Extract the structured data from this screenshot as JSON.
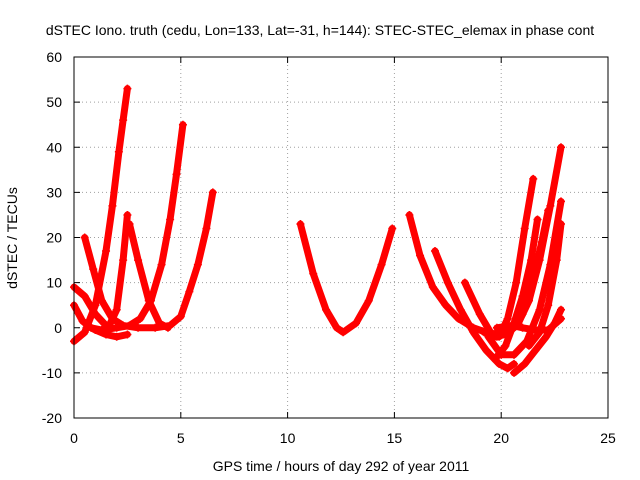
{
  "chart_data": {
    "type": "scatter",
    "title": "dSTEC Iono. truth (cedu, Lon=133, Lat=-31, h=144): STEC-STEC_elemax in phase cont",
    "xlabel": "GPS time / hours of day 292 of year 2011",
    "ylabel": "dSTEC  / TECUs",
    "xlim": [
      0,
      25
    ],
    "ylim": [
      -20,
      60
    ],
    "xticks": [
      0,
      5,
      10,
      15,
      20,
      25
    ],
    "yticks": [
      -20,
      -10,
      0,
      10,
      20,
      30,
      40,
      50,
      60
    ],
    "grid": true,
    "marker": "plus",
    "color": "#ff0000",
    "series": [
      {
        "x": [
          0.0,
          0.5,
          1.0,
          1.5,
          1.8,
          2.1,
          2.3,
          2.5
        ],
        "y": [
          -3.0,
          -1.0,
          5.0,
          17.0,
          27.0,
          39.0,
          46.0,
          53.0
        ]
      },
      {
        "x": [
          0.0,
          0.4,
          0.8,
          1.3,
          2.0,
          2.6,
          3.1,
          3.6,
          4.1,
          4.5,
          4.8,
          5.1
        ],
        "y": [
          5.0,
          1.5,
          0.0,
          -0.5,
          0.0,
          0.5,
          2.0,
          6.0,
          14.0,
          24.0,
          34.0,
          45.0
        ]
      },
      {
        "x": [
          0.0,
          0.5,
          1.0,
          1.6,
          2.0,
          2.3,
          2.5
        ],
        "y": [
          9.0,
          7.0,
          3.0,
          0.0,
          4.0,
          15.0,
          25.0
        ]
      },
      {
        "x": [
          0.5,
          0.9,
          1.3,
          1.8,
          2.3,
          3.0,
          3.8,
          4.5,
          5.0,
          5.4,
          5.8,
          6.2,
          6.5
        ],
        "y": [
          20.0,
          13.0,
          6.0,
          2.0,
          0.5,
          0.0,
          0.0,
          0.5,
          2.5,
          8.0,
          14.0,
          22.0,
          30.0
        ]
      },
      {
        "x": [
          0.6,
          1.0,
          1.5,
          2.0,
          2.5
        ],
        "y": [
          0.5,
          -0.5,
          -1.5,
          -2.0,
          -1.5
        ]
      },
      {
        "x": [
          2.6,
          3.0,
          3.5,
          4.0,
          4.4
        ],
        "y": [
          23.0,
          15.0,
          6.0,
          1.0,
          0.0
        ]
      },
      {
        "x": [
          10.6,
          11.2,
          11.8,
          12.3,
          12.6,
          13.2,
          13.8,
          14.4,
          14.9
        ],
        "y": [
          23.0,
          12.0,
          4.0,
          0.0,
          -1.0,
          1.0,
          6.0,
          14.0,
          22.0
        ]
      },
      {
        "x": [
          15.7,
          16.2,
          16.8,
          17.4,
          18.0,
          18.7,
          19.3,
          19.8
        ],
        "y": [
          25.0,
          16.0,
          9.0,
          5.0,
          2.0,
          0.0,
          -1.0,
          -2.0
        ]
      },
      {
        "x": [
          16.9,
          17.5,
          18.1,
          18.7,
          19.3,
          19.9,
          20.3,
          20.6
        ],
        "y": [
          17.0,
          10.0,
          4.0,
          -1.0,
          -5.0,
          -8.0,
          -9.0,
          -8.0
        ]
      },
      {
        "x": [
          18.3,
          19.0,
          19.5,
          19.9,
          20.3,
          20.7,
          21.1,
          21.5
        ],
        "y": [
          10.0,
          3.0,
          -1.0,
          -2.0,
          2.0,
          10.0,
          22.0,
          33.0
        ]
      },
      {
        "x": [
          19.2,
          19.7,
          20.2,
          20.6,
          21.0,
          21.5,
          21.9,
          22.2
        ],
        "y": [
          -1.0,
          -2.0,
          -1.5,
          0.0,
          3.0,
          11.0,
          19.0,
          26.0
        ]
      },
      {
        "x": [
          19.8,
          20.3,
          20.8,
          21.3,
          21.8,
          22.3,
          22.8
        ],
        "y": [
          -1.0,
          -0.5,
          1.0,
          6.0,
          15.0,
          27.0,
          40.0
        ]
      },
      {
        "x": [
          19.7,
          20.2,
          20.6,
          21.0,
          21.4,
          21.7
        ],
        "y": [
          -7.0,
          -4.0,
          1.0,
          7.0,
          15.0,
          24.0
        ]
      },
      {
        "x": [
          19.4,
          20.0,
          20.6,
          21.2,
          21.8,
          22.3,
          22.8
        ],
        "y": [
          -2.0,
          -6.0,
          -6.0,
          -3.0,
          4.0,
          14.0,
          28.0
        ]
      },
      {
        "x": [
          20.6,
          21.1,
          21.6,
          22.1,
          22.5,
          22.8
        ],
        "y": [
          -10.0,
          -8.0,
          -5.0,
          -2.0,
          1.0,
          4.0
        ]
      },
      {
        "x": [
          19.8,
          20.5,
          21.0,
          21.6,
          22.2,
          22.8
        ],
        "y": [
          0.0,
          0.5,
          0.0,
          -0.5,
          -0.5,
          2.0
        ]
      },
      {
        "x": [
          21.3,
          21.8,
          22.2,
          22.6,
          22.8
        ],
        "y": [
          -4.0,
          -1.0,
          5.0,
          15.0,
          23.0
        ]
      }
    ]
  }
}
